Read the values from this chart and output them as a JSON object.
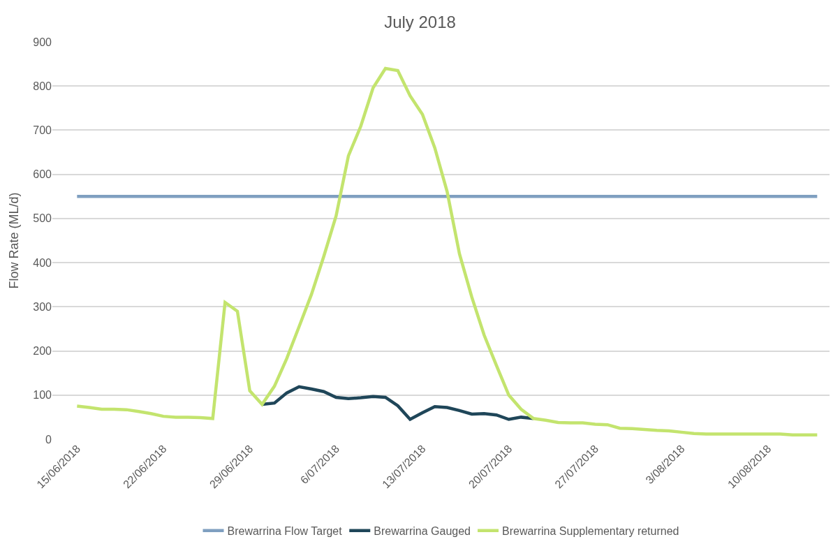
{
  "chart_data": {
    "type": "line",
    "title": "July 2018",
    "ylabel": "Flow Rate (ML/d)",
    "x": [
      "2018-06-15",
      "2018-06-16",
      "2018-06-17",
      "2018-06-18",
      "2018-06-19",
      "2018-06-20",
      "2018-06-21",
      "2018-06-22",
      "2018-06-23",
      "2018-06-24",
      "2018-06-25",
      "2018-06-26",
      "2018-06-27",
      "2018-06-28",
      "2018-06-29",
      "2018-06-30",
      "2018-07-01",
      "2018-07-02",
      "2018-07-03",
      "2018-07-04",
      "2018-07-05",
      "2018-07-06",
      "2018-07-07",
      "2018-07-08",
      "2018-07-09",
      "2018-07-10",
      "2018-07-11",
      "2018-07-12",
      "2018-07-13",
      "2018-07-14",
      "2018-07-15",
      "2018-07-16",
      "2018-07-17",
      "2018-07-18",
      "2018-07-19",
      "2018-07-20",
      "2018-07-21",
      "2018-07-22",
      "2018-07-23",
      "2018-07-24",
      "2018-07-25",
      "2018-07-26",
      "2018-07-27",
      "2018-07-28",
      "2018-07-29",
      "2018-07-30",
      "2018-07-31",
      "2018-08-01",
      "2018-08-02",
      "2018-08-03",
      "2018-08-04",
      "2018-08-05",
      "2018-08-06",
      "2018-08-07",
      "2018-08-08",
      "2018-08-09",
      "2018-08-10",
      "2018-08-11",
      "2018-08-12",
      "2018-08-13",
      "2018-08-14"
    ],
    "series": [
      {
        "name": "Brewarrina Flow Target",
        "color": "#7f9fc0",
        "values": [
          550,
          550,
          550,
          550,
          550,
          550,
          550,
          550,
          550,
          550,
          550,
          550,
          550,
          550,
          550,
          550,
          550,
          550,
          550,
          550,
          550,
          550,
          550,
          550,
          550,
          550,
          550,
          550,
          550,
          550,
          550,
          550,
          550,
          550,
          550,
          550,
          550,
          550,
          550,
          550,
          550,
          550,
          550,
          550,
          550,
          550,
          550,
          550,
          550,
          550,
          550,
          550,
          550,
          550,
          550,
          550,
          550,
          550,
          550,
          550,
          550
        ]
      },
      {
        "name": "Brewarrina Gauged",
        "color": "#1f4659",
        "values": [
          null,
          null,
          null,
          null,
          null,
          null,
          null,
          null,
          null,
          null,
          null,
          null,
          null,
          null,
          null,
          79,
          82,
          105,
          119,
          114,
          108,
          95,
          92,
          94,
          97,
          95,
          76,
          45,
          60,
          74,
          72,
          65,
          57,
          58,
          55,
          45,
          50,
          47,
          null,
          null,
          null,
          null,
          null,
          null,
          null,
          null,
          null,
          null,
          null,
          null,
          null,
          null,
          null,
          null,
          null,
          null,
          null,
          null,
          null,
          null,
          null
        ]
      },
      {
        "name": "Brewarrina Supplementary returned",
        "color": "#c3e46e",
        "values": [
          75,
          72,
          68,
          68,
          67,
          63,
          58,
          52,
          50,
          50,
          49,
          47,
          310,
          290,
          110,
          79,
          120,
          183,
          255,
          328,
          414,
          506,
          642,
          709,
          796,
          840,
          835,
          778,
          736,
          660,
          561,
          420,
          322,
          236,
          167,
          100,
          68,
          47,
          43,
          38,
          37,
          37,
          34,
          33,
          25,
          24,
          22,
          20,
          19,
          16,
          13,
          12,
          12,
          12,
          12,
          12,
          12,
          12,
          10,
          10,
          10
        ]
      }
    ],
    "xlim": [
      "2018-06-13",
      "2018-08-15"
    ],
    "xticks": [
      {
        "value": "2018-06-15",
        "label": "15/06/2018"
      },
      {
        "value": "2018-06-22",
        "label": "22/06/2018"
      },
      {
        "value": "2018-06-29",
        "label": "29/06/2018"
      },
      {
        "value": "2018-07-06",
        "label": "6/07/2018"
      },
      {
        "value": "2018-07-13",
        "label": "13/07/2018"
      },
      {
        "value": "2018-07-20",
        "label": "20/07/2018"
      },
      {
        "value": "2018-07-27",
        "label": "27/07/2018"
      },
      {
        "value": "2018-08-03",
        "label": "3/08/2018"
      },
      {
        "value": "2018-08-10",
        "label": "10/08/2018"
      }
    ],
    "ylim": [
      0,
      900
    ],
    "yticks": [
      0,
      100,
      200,
      300,
      400,
      500,
      600,
      700,
      800,
      900
    ],
    "grid": "y",
    "legend": "bottom",
    "marker": "none",
    "line_style": "solid"
  }
}
